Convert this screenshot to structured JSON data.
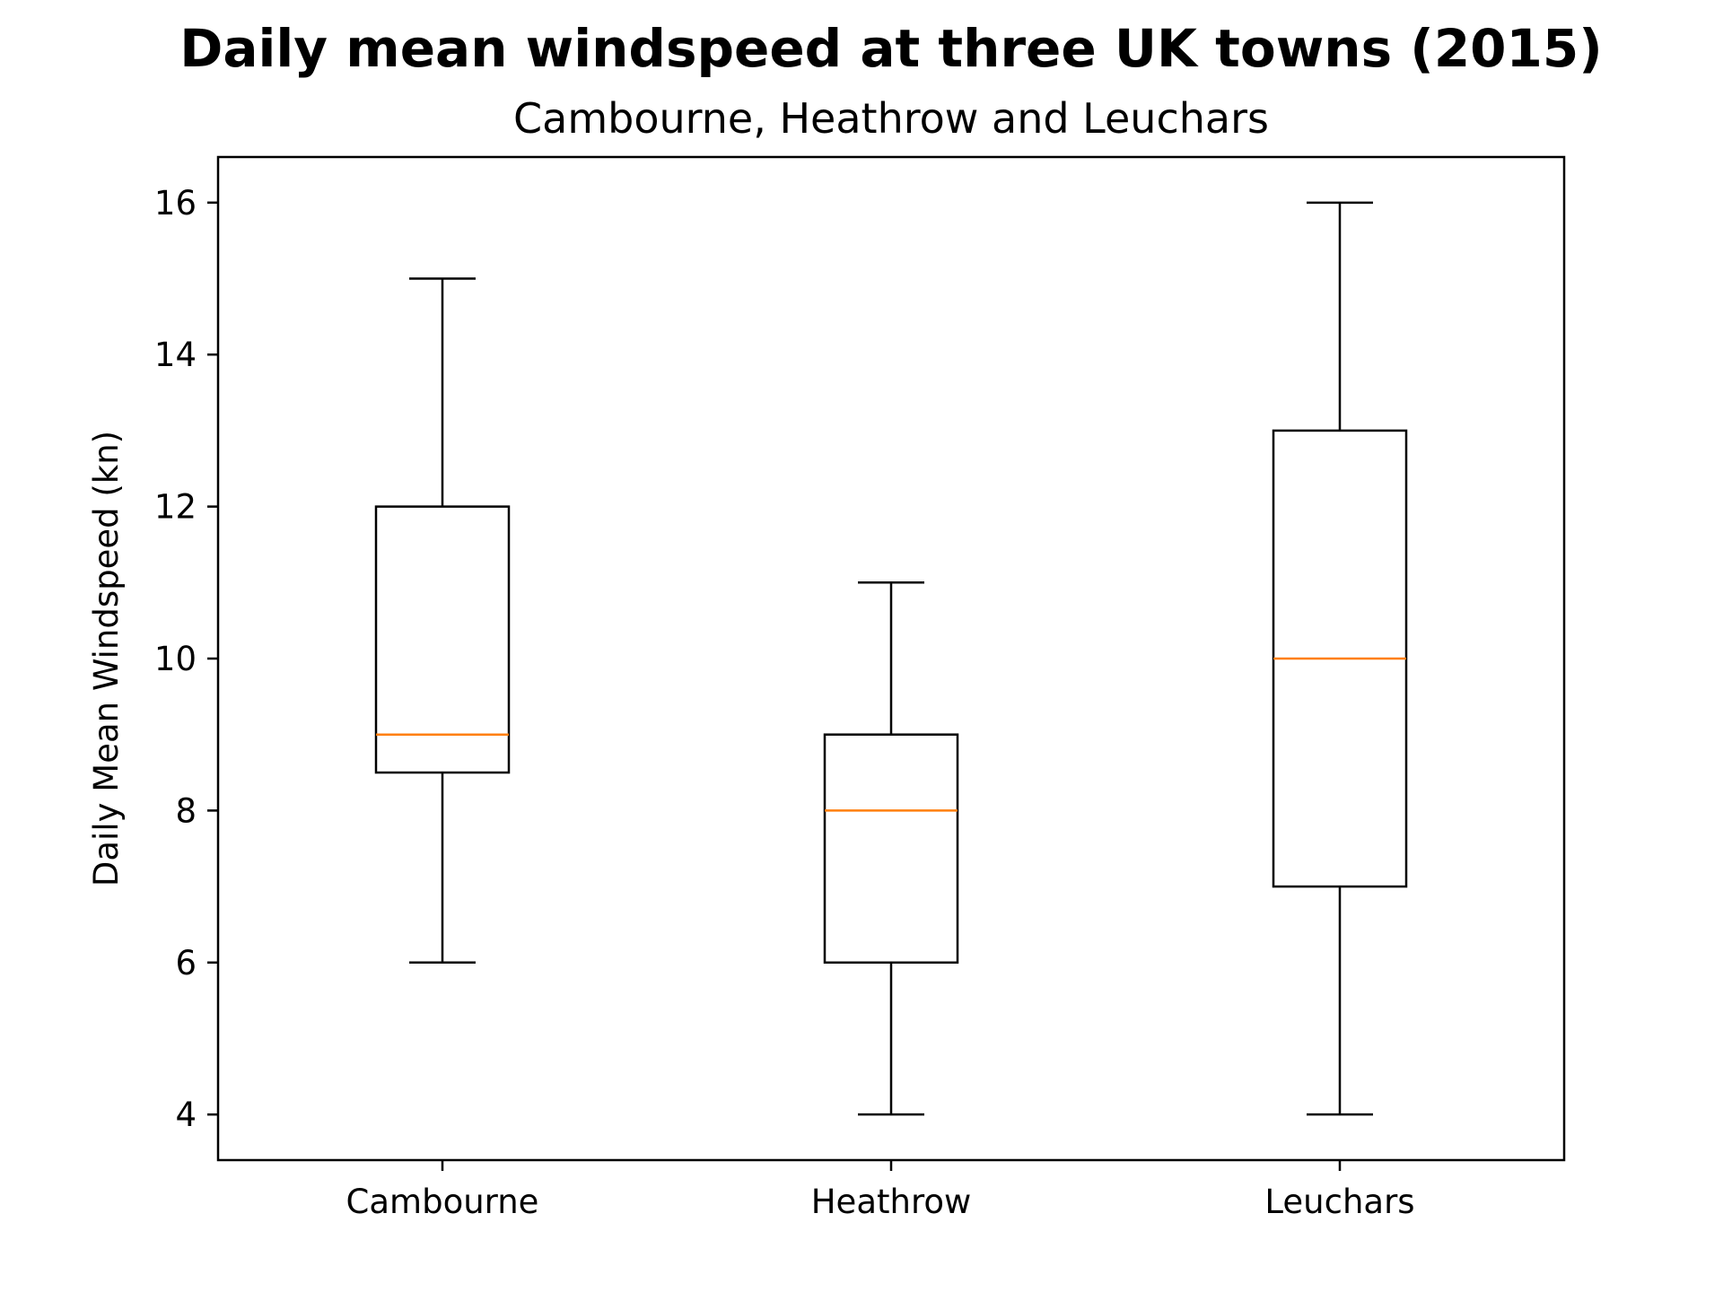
{
  "chart_data": {
    "type": "boxplot",
    "title": "Daily mean windspeed at three UK towns (2015)",
    "subtitle": "Cambourne, Heathrow and Leuchars",
    "xlabel": "",
    "ylabel": "Daily Mean Windspeed (kn)",
    "ylim": [
      3.4,
      16.6
    ],
    "yticks": [
      4,
      6,
      8,
      10,
      12,
      14,
      16
    ],
    "categories": [
      "Cambourne",
      "Heathrow",
      "Leuchars"
    ],
    "boxes": [
      {
        "category": "Cambourne",
        "whisker_low": 6,
        "q1": 8.5,
        "median": 9,
        "q3": 12,
        "whisker_high": 15
      },
      {
        "category": "Heathrow",
        "whisker_low": 4,
        "q1": 6,
        "median": 8,
        "q3": 9,
        "whisker_high": 11
      },
      {
        "category": "Leuchars",
        "whisker_low": 4,
        "q1": 7,
        "median": 10,
        "q3": 13,
        "whisker_high": 16
      }
    ],
    "grid": false,
    "colors": {
      "box": "#000000",
      "median": "#ff7f0e",
      "axes": "#000000"
    }
  }
}
